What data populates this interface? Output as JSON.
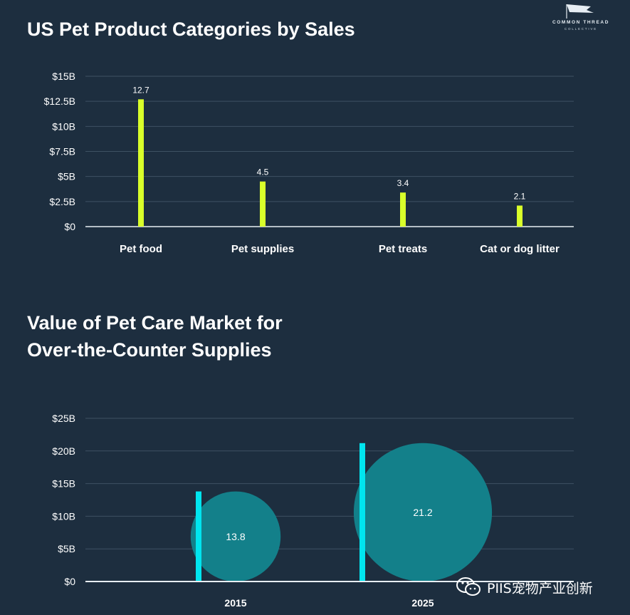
{
  "logo": {
    "line1": "COMMON THREAD",
    "line2": "COLLECTIVE"
  },
  "watermark": {
    "text": "PIIS宠物产业创新",
    "icon": "wechat-icon"
  },
  "colors": {
    "background": "#1d2e3f",
    "bar1": "#d9ff2a",
    "bar2": "#00e5ef",
    "bubble": "#13808a",
    "grid": "#3e5163"
  },
  "chart_data": [
    {
      "type": "bar",
      "title": "US Pet Product Categories by Sales",
      "categories": [
        "Pet food",
        "Pet supplies",
        "Pet treats",
        "Cat or dog litter"
      ],
      "values": [
        12.7,
        4.5,
        3.4,
        2.1
      ],
      "data_labels": [
        "12.7",
        "4.5",
        "3.4",
        "2.1"
      ],
      "ylim": [
        0,
        15
      ],
      "yticks": [
        0,
        2.5,
        5,
        7.5,
        10,
        12.5,
        15
      ],
      "ytick_labels": [
        "$0",
        "$2.5B",
        "$5B",
        "$7.5B",
        "$10B",
        "$12.5B",
        "$15B"
      ],
      "grid": true
    },
    {
      "type": "bar",
      "title": "Value of Pet Care Market for Over-the-Counter Supplies",
      "title_lines": [
        "Value of Pet Care Market for",
        "Over-the-Counter Supplies"
      ],
      "categories": [
        "2015",
        "2025"
      ],
      "values": [
        13.8,
        21.2
      ],
      "data_labels": [
        "13.8",
        "21.2"
      ],
      "ylim": [
        0,
        25
      ],
      "yticks": [
        0,
        5,
        10,
        15,
        20,
        25
      ],
      "ytick_labels": [
        "$0",
        "$5B",
        "$10B",
        "$15B",
        "$20B",
        "$25B"
      ],
      "grid": true
    }
  ]
}
